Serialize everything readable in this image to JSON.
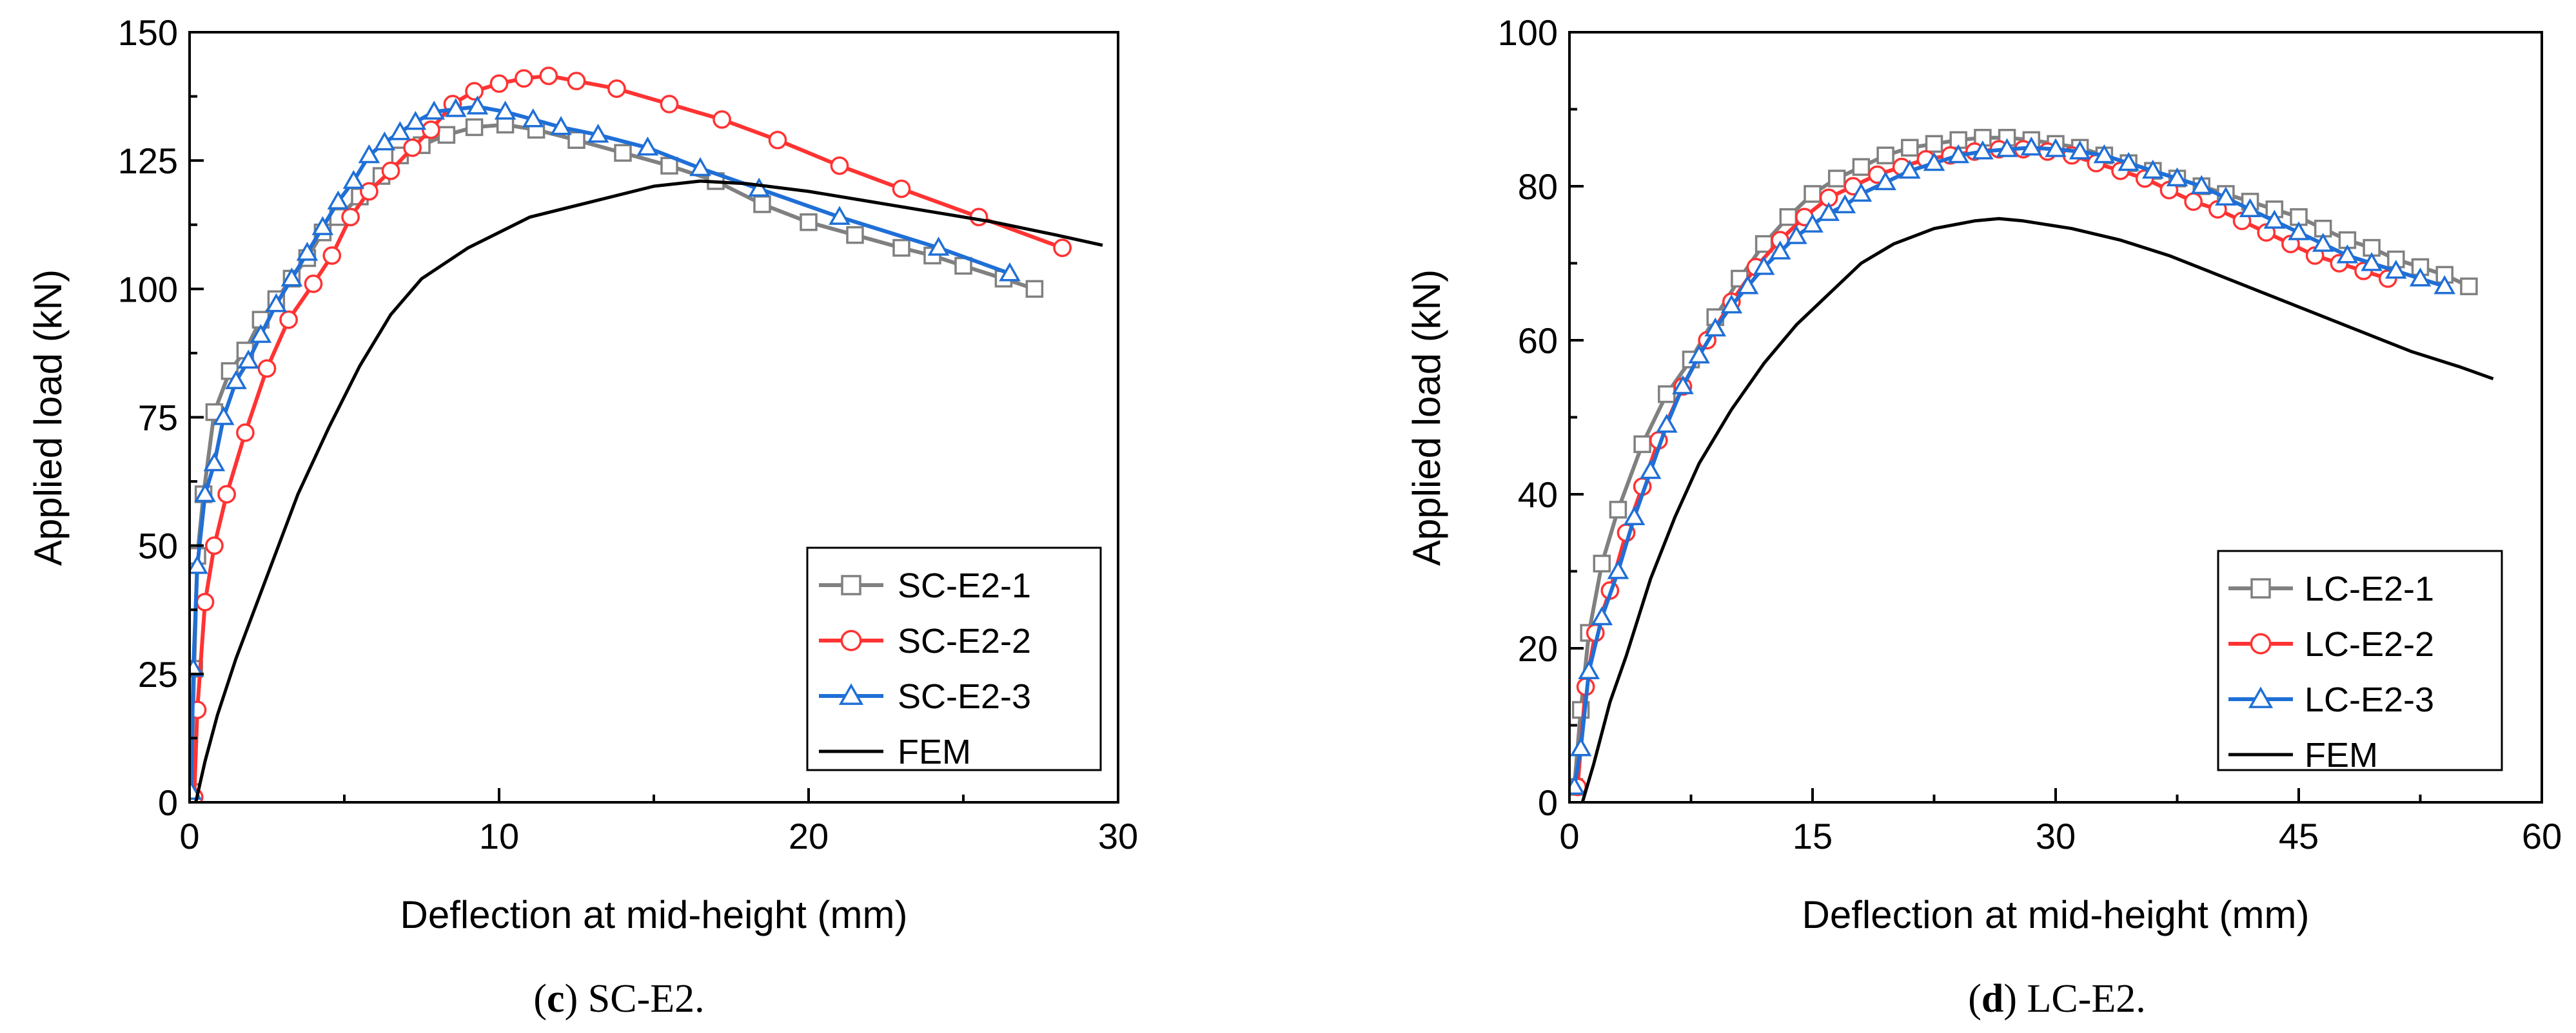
{
  "chart_data": [
    {
      "type": "line",
      "panel_label": "c",
      "caption": "SC-E2.",
      "xlabel": "Deflection at mid-height (mm)",
      "ylabel": "Applied load (kN)",
      "xlim": [
        0,
        30
      ],
      "ylim": [
        0,
        150
      ],
      "xticks": [
        0,
        10,
        20,
        30
      ],
      "yticks": [
        0,
        25,
        50,
        75,
        100,
        125,
        150
      ],
      "legend": "bottom-right",
      "series": [
        {
          "name": "SC-E2-1",
          "color": "#808080",
          "marker": "square",
          "x": [
            0.05,
            0.15,
            0.25,
            0.45,
            0.8,
            1.3,
            1.8,
            2.3,
            2.8,
            3.3,
            3.8,
            4.3,
            4.8,
            5.5,
            6.2,
            6.8,
            7.5,
            8.3,
            9.2,
            10.2,
            11.2,
            12.5,
            14,
            15.5,
            17,
            18.5,
            20,
            21.5,
            23,
            24,
            25,
            26.3,
            27.3
          ],
          "y": [
            2,
            26,
            48,
            60,
            76,
            84,
            88,
            94,
            98,
            102,
            106,
            111,
            114,
            118,
            122,
            126,
            128,
            130,
            131.5,
            132,
            131,
            129,
            126.5,
            124,
            121,
            116.5,
            113,
            110.5,
            108,
            106.5,
            104.5,
            102,
            100
          ]
        },
        {
          "name": "SC-E2-2",
          "color": "#ff3333",
          "marker": "circle",
          "x": [
            0.15,
            0.25,
            0.5,
            0.8,
            1.2,
            1.8,
            2.5,
            3.2,
            4,
            4.6,
            5.2,
            5.8,
            6.5,
            7.2,
            7.8,
            8.5,
            9.2,
            10,
            10.8,
            11.6,
            12.5,
            13.8,
            15.5,
            17.2,
            19,
            21,
            23,
            25.5,
            28.2
          ],
          "y": [
            1,
            18,
            39,
            50,
            60,
            72,
            84.5,
            94,
            101,
            106.5,
            114,
            119,
            123,
            127.5,
            131,
            136,
            138.5,
            140,
            141,
            141.5,
            140.5,
            139,
            136,
            133,
            129,
            124,
            119.5,
            114,
            108
          ]
        },
        {
          "name": "SC-E2-3",
          "color": "#1f6fd6",
          "marker": "triangle",
          "x": [
            0.05,
            0.12,
            0.25,
            0.5,
            0.8,
            1.1,
            1.5,
            1.9,
            2.3,
            2.8,
            3.3,
            3.8,
            4.3,
            4.8,
            5.3,
            5.8,
            6.3,
            6.8,
            7.3,
            7.9,
            8.6,
            9.3,
            10.2,
            11.1,
            12,
            13.2,
            14.8,
            16.5,
            18.4,
            21,
            24.2,
            26.5
          ],
          "y": [
            2,
            26,
            46,
            60,
            66,
            75,
            82,
            86,
            91,
            97,
            102,
            107,
            112,
            117,
            121,
            126,
            128.5,
            130.5,
            132.5,
            134.5,
            135,
            135.5,
            134.5,
            133,
            131.5,
            130,
            127.5,
            123.5,
            119.5,
            114,
            108,
            103
          ]
        },
        {
          "name": "FEM",
          "color": "#000000",
          "marker": "none",
          "x": [
            0.2,
            0.5,
            0.9,
            1.5,
            2.5,
            3.5,
            4.5,
            5.5,
            6.5,
            7.5,
            9,
            11,
            13,
            15,
            16.5,
            18,
            20,
            22,
            24,
            26,
            28,
            29.5
          ],
          "y": [
            0,
            8,
            17,
            28,
            44,
            60,
            73,
            85,
            95,
            102,
            108,
            114,
            117,
            120,
            121,
            120.5,
            119,
            117,
            115,
            113,
            110.5,
            108.5
          ]
        }
      ]
    },
    {
      "type": "line",
      "panel_label": "d",
      "caption": "LC-E2.",
      "xlabel": "Deflection at mid-height (mm)",
      "ylabel": "Applied load (kN)",
      "xlim": [
        0,
        60
      ],
      "ylim": [
        0,
        100
      ],
      "xticks": [
        0,
        15,
        30,
        45,
        60
      ],
      "yticks": [
        0,
        20,
        40,
        60,
        80,
        100
      ],
      "legend": "bottom-right",
      "series": [
        {
          "name": "LC-E2-1",
          "color": "#808080",
          "marker": "square",
          "x": [
            0.3,
            0.7,
            1.2,
            2,
            3,
            4.5,
            6,
            7.5,
            9,
            10.5,
            12,
            13.5,
            15,
            16.5,
            18,
            19.5,
            21,
            22.5,
            24,
            25.5,
            27,
            28.5,
            30,
            31.5,
            33,
            34.5,
            36,
            37.5,
            39,
            40.5,
            42,
            43.5,
            45,
            46.5,
            48,
            49.5,
            51,
            52.5,
            54,
            55.5
          ],
          "y": [
            2,
            12,
            22,
            31,
            38,
            46.5,
            53,
            57.5,
            63,
            68,
            72.5,
            76,
            79,
            81,
            82.5,
            84,
            85,
            85.5,
            86,
            86.3,
            86.3,
            86,
            85.5,
            85,
            84,
            83,
            82,
            81,
            80,
            79,
            78,
            77,
            76,
            74.5,
            73,
            72,
            70.5,
            69.5,
            68.5,
            67
          ]
        },
        {
          "name": "LC-E2-2",
          "color": "#ff3333",
          "marker": "circle",
          "x": [
            0.5,
            1,
            1.6,
            2.5,
            3.5,
            4.5,
            5.5,
            7,
            8.5,
            10,
            11.5,
            13,
            14.5,
            16,
            17.5,
            19,
            20.5,
            22,
            23.5,
            25,
            26.5,
            28,
            29.5,
            31,
            32.5,
            34,
            35.5,
            37,
            38.5,
            40,
            41.5,
            43,
            44.5,
            46,
            47.5,
            49,
            50.5
          ],
          "y": [
            2,
            15,
            22,
            27.5,
            35,
            41,
            47,
            54,
            60,
            65,
            69.5,
            73,
            76,
            78.5,
            80,
            81.5,
            82.5,
            83.5,
            84,
            84.5,
            84.8,
            84.8,
            84.5,
            84,
            83,
            82,
            81,
            79.5,
            78,
            77,
            75.5,
            74,
            72.5,
            71,
            70,
            69,
            68
          ]
        },
        {
          "name": "LC-E2-3",
          "color": "#1f6fd6",
          "marker": "triangle",
          "x": [
            0.3,
            0.7,
            1.2,
            2,
            3,
            4,
            5,
            6,
            7,
            8,
            9,
            10,
            11,
            12,
            13,
            14,
            15,
            16,
            17,
            18,
            19.5,
            21,
            22.5,
            24,
            25.5,
            27,
            28.5,
            30,
            31.5,
            33,
            34.5,
            36,
            37.5,
            39,
            40.5,
            42,
            43.5,
            45,
            46.5,
            48,
            49.5,
            51,
            52.5,
            54
          ],
          "y": [
            2,
            7,
            17,
            24,
            30,
            37,
            43,
            49,
            54,
            58,
            61.5,
            64.5,
            67,
            69.5,
            71.5,
            73.5,
            75,
            76.5,
            77.5,
            79,
            80.5,
            82,
            83,
            84,
            84.5,
            84.8,
            85,
            84.8,
            84.5,
            84,
            83,
            82,
            81,
            80,
            78.5,
            77,
            75.5,
            74,
            72.5,
            71,
            70,
            69,
            68,
            67
          ]
        },
        {
          "name": "FEM",
          "color": "#000000",
          "marker": "none",
          "x": [
            0.8,
            1.5,
            2.5,
            3.5,
            5,
            6.5,
            8,
            10,
            12,
            14,
            16,
            18,
            20,
            22.5,
            25,
            26.5,
            28,
            31,
            34,
            37,
            40,
            43,
            46,
            49,
            52,
            55,
            57
          ],
          "y": [
            0,
            5,
            13,
            19,
            29,
            37,
            44,
            51,
            57,
            62,
            66,
            70,
            72.5,
            74.5,
            75.5,
            75.8,
            75.5,
            74.5,
            73,
            71,
            68.5,
            66,
            63.5,
            61,
            58.5,
            56.5,
            55
          ]
        }
      ]
    }
  ]
}
